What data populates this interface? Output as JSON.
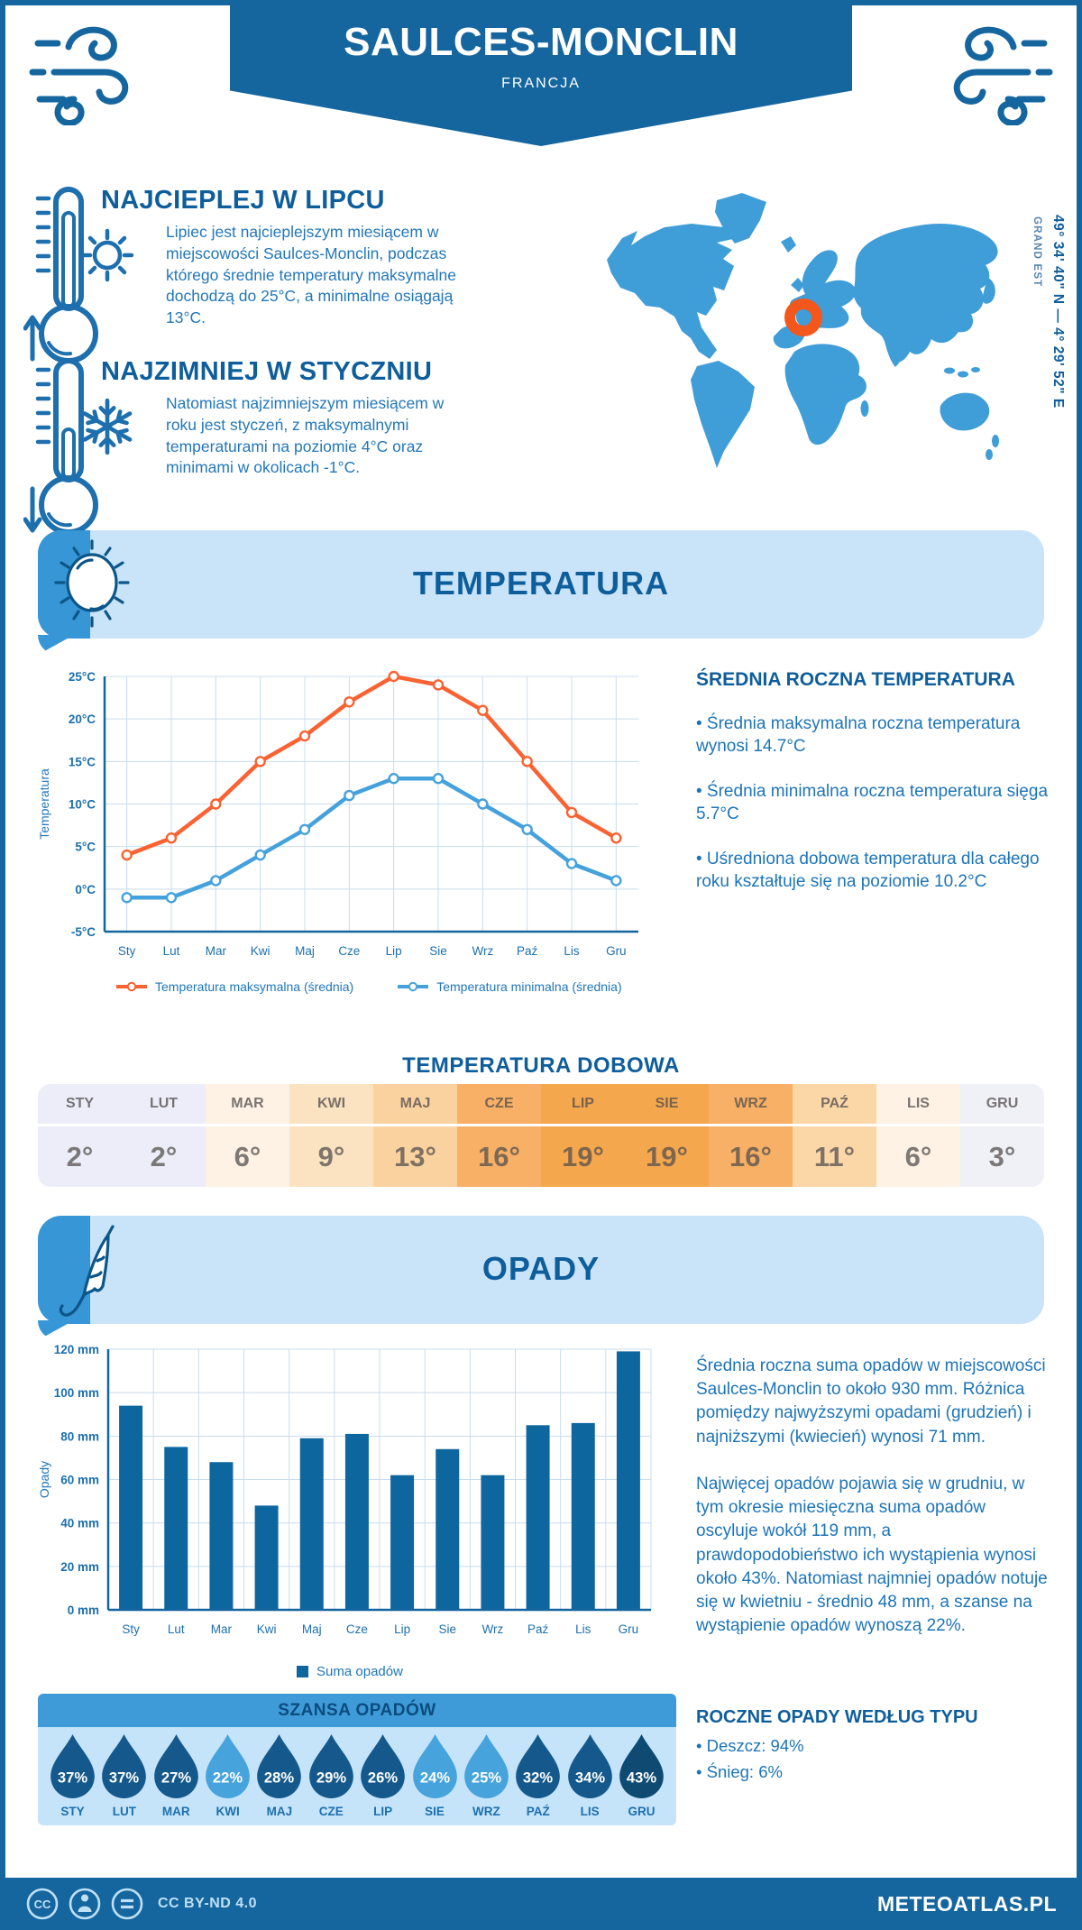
{
  "header": {
    "title": "SAULCES-MONCLIN",
    "country": "FRANCJA"
  },
  "location": {
    "coords": "49° 34' 40\" N — 4° 29' 52\" E",
    "region": "GRAND EST"
  },
  "warmest": {
    "heading": "NAJCIEPLEJ W LIPCU",
    "text": "Lipiec jest najcieplejszym miesiącem w miejscowości Saulces-Monclin, podczas którego średnie temperatury maksymalne dochodzą do 25°C, a minimalne osiągają 13°C."
  },
  "coldest": {
    "heading": "NAJZIMNIEJ W STYCZNIU",
    "text": "Natomiast najzimniejszym miesiącem w roku jest styczeń, z maksymalnymi temperaturami na poziomie 4°C oraz minimami w okolicach -1°C."
  },
  "temperature_section": {
    "banner": "TEMPERATURA",
    "annual": {
      "heading": "ŚREDNIA ROCZNA TEMPERATURA",
      "bullets": [
        "• Średnia maksymalna roczna temperatura wynosi 14.7°C",
        "• Średnia minimalna roczna temperatura sięga 5.7°C",
        "• Uśredniona dobowa temperatura dla całego roku kształtuje się na poziomie 10.2°C"
      ]
    },
    "daily": {
      "heading": "TEMPERATURA DOBOWA",
      "months": [
        "STY",
        "LUT",
        "MAR",
        "KWI",
        "MAJ",
        "CZE",
        "LIP",
        "SIE",
        "WRZ",
        "PAŹ",
        "LIS",
        "GRU"
      ],
      "values": [
        "2°",
        "2°",
        "6°",
        "9°",
        "13°",
        "16°",
        "19°",
        "19°",
        "16°",
        "11°",
        "6°",
        "3°"
      ],
      "cell_colors": [
        "#ECEDF8",
        "#ECEDF8",
        "#FDF2E4",
        "#FBE3C1",
        "#FAD2A0",
        "#F7B065",
        "#F5A74E",
        "#F5A74E",
        "#F7B065",
        "#FBD7A8",
        "#FDF2E4",
        "#F0F0F7"
      ]
    }
  },
  "precip_section": {
    "banner": "OPADY",
    "paragraphs": [
      "Średnia roczna suma opadów w miejscowości Saulces-Monclin to około 930 mm. Różnica pomiędzy najwyższymi opadami (grudzień) i najniższymi (kwiecień) wynosi 71 mm.",
      "Najwięcej opadów pojawia się w grudniu, w tym okresie miesięczna suma opadów oscyluje wokół 119 mm, a prawdopodobieństwo ich wystąpienia wynosi około 43%. Natomiast najmniej opadów notuje się w kwietniu - średnio 48 mm, a szanse na wystąpienie opadów wynoszą 22%."
    ],
    "type_heading": "ROCZNE OPADY WEDŁUG TYPU",
    "type_bullets": [
      "• Deszcz: 94%",
      "• Śnieg: 6%"
    ],
    "chance": {
      "heading": "SZANSA OPADÓW",
      "months": [
        "STY",
        "LUT",
        "MAR",
        "KWI",
        "MAJ",
        "CZE",
        "LIP",
        "SIE",
        "WRZ",
        "PAŹ",
        "LIS",
        "GRU"
      ],
      "values": [
        "37%",
        "37%",
        "27%",
        "22%",
        "28%",
        "29%",
        "26%",
        "24%",
        "25%",
        "32%",
        "34%",
        "43%"
      ],
      "drop_colors": [
        "#15598C",
        "#15598C",
        "#15598C",
        "#46A3DC",
        "#15598C",
        "#15598C",
        "#15598C",
        "#46A3DC",
        "#46A3DC",
        "#15598C",
        "#15598C",
        "#0F4A73"
      ]
    }
  },
  "chart_data": [
    {
      "type": "line",
      "categories": [
        "Sty",
        "Lut",
        "Mar",
        "Kwi",
        "Maj",
        "Cze",
        "Lip",
        "Sie",
        "Wrz",
        "Paź",
        "Lis",
        "Gru"
      ],
      "series": [
        {
          "name": "Temperatura maksymalna (średnia)",
          "color": "#F96232",
          "values": [
            4,
            6,
            10,
            15,
            18,
            22,
            25,
            24,
            21,
            15,
            9,
            6
          ]
        },
        {
          "name": "Temperatura minimalna (średnia)",
          "color": "#45A1DC",
          "values": [
            -1,
            -1,
            1,
            4,
            7,
            11,
            13,
            13,
            10,
            7,
            3,
            1
          ]
        }
      ],
      "ylabel": "Temperatura",
      "ytick_suffix": "°C",
      "ylim": [
        -5,
        25
      ],
      "ystep": 5,
      "grid": true,
      "legend_position": "bottom"
    },
    {
      "type": "bar",
      "categories": [
        "Sty",
        "Lut",
        "Mar",
        "Kwi",
        "Maj",
        "Cze",
        "Lip",
        "Sie",
        "Wrz",
        "Paź",
        "Lis",
        "Gru"
      ],
      "series": [
        {
          "name": "Suma opadów",
          "color": "#0E669F",
          "values": [
            94,
            75,
            68,
            48,
            79,
            81,
            62,
            74,
            62,
            85,
            86,
            119
          ]
        }
      ],
      "ylabel": "Opady",
      "ytick_suffix": " mm",
      "ylim": [
        0,
        120
      ],
      "ystep": 20,
      "grid": true,
      "legend_position": "bottom"
    }
  ],
  "footer": {
    "license": "CC BY-ND 4.0",
    "site": "METEOATLAS.PL"
  },
  "colors": {
    "brand_dark": "#15669F",
    "banner_bg": "#C9E4F9",
    "banner_strip": "#3796D5",
    "map_land": "#3F9DD8",
    "marker_orange": "#F4571C",
    "grid": "#C9DCEF",
    "axis": "#15669F",
    "tick_text": "#1C6FAE"
  }
}
